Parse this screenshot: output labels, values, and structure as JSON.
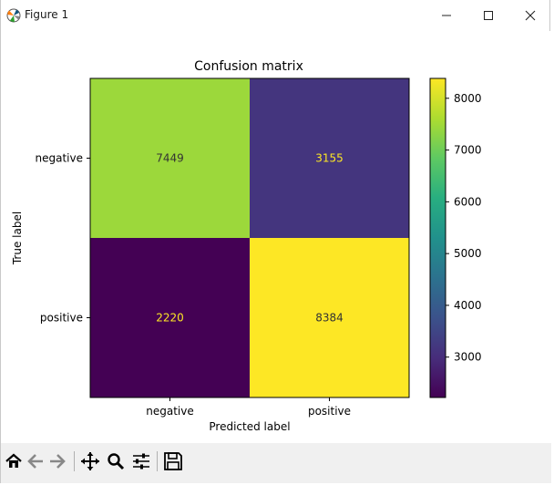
{
  "window": {
    "title": "Figure 1",
    "controls": {
      "minimize_icon": "minimize-icon",
      "maximize_icon": "maximize-icon",
      "close_icon": "close-icon"
    }
  },
  "toolbar": {
    "buttons": [
      {
        "name": "home-button",
        "icon": "home-icon"
      },
      {
        "name": "back-button",
        "icon": "back-arrow-icon"
      },
      {
        "name": "forward-button",
        "icon": "forward-arrow-icon"
      },
      {
        "name": "pan-button",
        "icon": "move-icon"
      },
      {
        "name": "zoom-button",
        "icon": "zoom-icon"
      },
      {
        "name": "configure-subplots-button",
        "icon": "sliders-icon"
      },
      {
        "name": "save-button",
        "icon": "save-icon"
      }
    ]
  },
  "chart_data": {
    "type": "heatmap",
    "title": "Confusion matrix",
    "xlabel": "Predicted label",
    "ylabel": "True label",
    "x_categories": [
      "negative",
      "positive"
    ],
    "y_categories": [
      "negative",
      "positive"
    ],
    "values": [
      [
        7449,
        3155
      ],
      [
        2220,
        8384
      ]
    ],
    "colormap": "viridis",
    "text_colors": {
      "dark_cell": "#fde725",
      "light_cell": "#333333"
    },
    "colorbar": {
      "range": [
        2220,
        8384
      ],
      "ticks": [
        3000,
        4000,
        5000,
        6000,
        7000,
        8000
      ]
    },
    "grid": false
  }
}
